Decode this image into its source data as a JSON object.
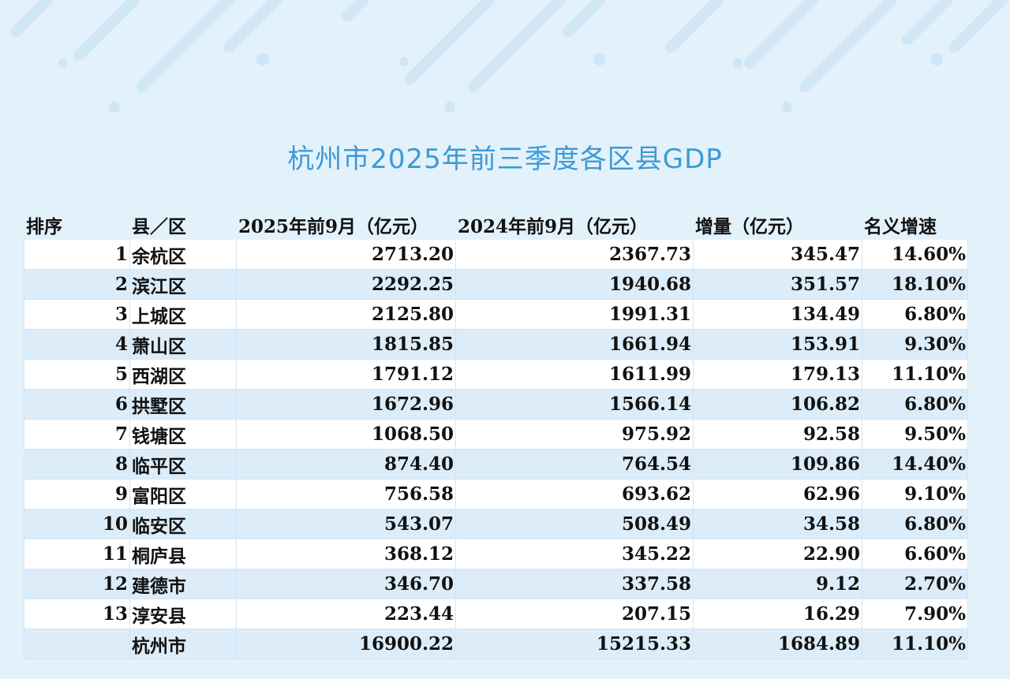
{
  "title": "杭州市2025年前三季度各区县GDP",
  "table": {
    "headers": [
      "排序",
      "县／区",
      "2025年前9月（亿元）",
      "2024年前9月（亿元）",
      "增量（亿元）",
      "名义增速"
    ],
    "rows": [
      [
        "1",
        "余杭区",
        "2713.20",
        "2367.73",
        "345.47",
        "14.60%"
      ],
      [
        "2",
        "滨江区",
        "2292.25",
        "1940.68",
        "351.57",
        "18.10%"
      ],
      [
        "3",
        "上城区",
        "2125.80",
        "1991.31",
        "134.49",
        "6.80%"
      ],
      [
        "4",
        "萧山区",
        "1815.85",
        "1661.94",
        "153.91",
        "9.30%"
      ],
      [
        "5",
        "西湖区",
        "1791.12",
        "1611.99",
        "179.13",
        "11.10%"
      ],
      [
        "6",
        "拱墅区",
        "1672.96",
        "1566.14",
        "106.82",
        "6.80%"
      ],
      [
        "7",
        "钱塘区",
        "1068.50",
        "975.92",
        "92.58",
        "9.50%"
      ],
      [
        "8",
        "临平区",
        "874.40",
        "764.54",
        "109.86",
        "14.40%"
      ],
      [
        "9",
        "富阳区",
        "756.58",
        "693.62",
        "62.96",
        "9.10%"
      ],
      [
        "10",
        "临安区",
        "543.07",
        "508.49",
        "34.58",
        "6.80%"
      ],
      [
        "11",
        "桐庐县",
        "368.12",
        "345.22",
        "22.90",
        "6.60%"
      ],
      [
        "12",
        "建德市",
        "346.70",
        "337.58",
        "9.12",
        "2.70%"
      ],
      [
        "13",
        "淳安县",
        "223.44",
        "207.15",
        "16.29",
        "7.90%"
      ],
      [
        null,
        "杭州市",
        "16900.22",
        "15215.33",
        "1684.89",
        "11.10%"
      ]
    ]
  }
}
